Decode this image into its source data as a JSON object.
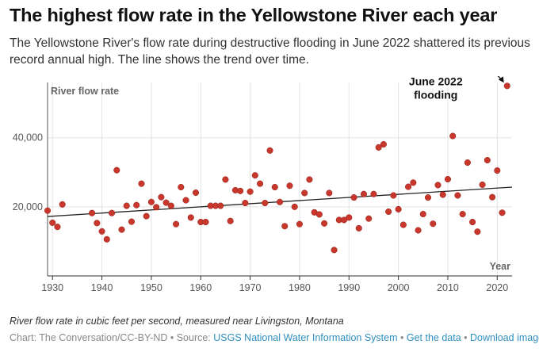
{
  "title": "The highest flow rate in the Yellowstone River each year",
  "subtitle": "The Yellowstone River's flow rate during destructive flooding in June 2022 shattered its previous record annual high. The line shows the trend over time.",
  "footnote": "River flow rate in cubic feet per second, measured near Livingston, Montana",
  "credits": {
    "prefix": "Chart: The Conversation/CC-BY-ND • Source: ",
    "source_link": "USGS National Water Information System",
    "sep1": " • ",
    "data_link": "Get the data",
    "sep2": " • ",
    "download_link": "Download image"
  },
  "colors": {
    "point": "#c9372c",
    "point_stroke": "#8e2219",
    "trend": "#222222",
    "grid": "#e3e3e3",
    "axis_label": "#666666",
    "link": "#2f8fbf"
  },
  "chart_data": {
    "type": "scatter",
    "ylabel": "River flow rate",
    "xlabel": "Year",
    "xlim": [
      1929,
      2023
    ],
    "ylim": [
      0,
      56000
    ],
    "xticks": [
      1930,
      1940,
      1950,
      1960,
      1970,
      1980,
      1990,
      2000,
      2010,
      2020
    ],
    "yticks": [
      20000,
      40000
    ],
    "ytick_labels": [
      "20,000",
      "40,000"
    ],
    "grid": true,
    "trend_line": {
      "x": [
        1929,
        2023
      ],
      "y": [
        17200,
        25700
      ]
    },
    "annotation": {
      "text_lines": [
        "June 2022",
        "flooding"
      ],
      "x": 2022,
      "y": 55000
    },
    "points": [
      {
        "x": 1929,
        "y": 18900
      },
      {
        "x": 1930,
        "y": 15400
      },
      {
        "x": 1931,
        "y": 14200
      },
      {
        "x": 1932,
        "y": 20700
      },
      {
        "x": 1938,
        "y": 18200
      },
      {
        "x": 1939,
        "y": 15300
      },
      {
        "x": 1940,
        "y": 12900
      },
      {
        "x": 1941,
        "y": 10600
      },
      {
        "x": 1942,
        "y": 18200
      },
      {
        "x": 1943,
        "y": 30600
      },
      {
        "x": 1944,
        "y": 13400
      },
      {
        "x": 1945,
        "y": 20300
      },
      {
        "x": 1946,
        "y": 15700
      },
      {
        "x": 1947,
        "y": 20500
      },
      {
        "x": 1948,
        "y": 26700
      },
      {
        "x": 1949,
        "y": 17300
      },
      {
        "x": 1950,
        "y": 21400
      },
      {
        "x": 1951,
        "y": 19900
      },
      {
        "x": 1952,
        "y": 22800
      },
      {
        "x": 1953,
        "y": 21200
      },
      {
        "x": 1954,
        "y": 20300
      },
      {
        "x": 1955,
        "y": 15000
      },
      {
        "x": 1956,
        "y": 25700
      },
      {
        "x": 1957,
        "y": 21900
      },
      {
        "x": 1958,
        "y": 16900
      },
      {
        "x": 1959,
        "y": 24100
      },
      {
        "x": 1960,
        "y": 15600
      },
      {
        "x": 1961,
        "y": 15600
      },
      {
        "x": 1962,
        "y": 20300
      },
      {
        "x": 1963,
        "y": 20300
      },
      {
        "x": 1964,
        "y": 20300
      },
      {
        "x": 1965,
        "y": 27900
      },
      {
        "x": 1966,
        "y": 15900
      },
      {
        "x": 1967,
        "y": 24800
      },
      {
        "x": 1968,
        "y": 24600
      },
      {
        "x": 1969,
        "y": 21100
      },
      {
        "x": 1970,
        "y": 24400
      },
      {
        "x": 1971,
        "y": 29100
      },
      {
        "x": 1972,
        "y": 26700
      },
      {
        "x": 1973,
        "y": 21100
      },
      {
        "x": 1974,
        "y": 36300
      },
      {
        "x": 1975,
        "y": 25700
      },
      {
        "x": 1976,
        "y": 21400
      },
      {
        "x": 1977,
        "y": 14400
      },
      {
        "x": 1978,
        "y": 26100
      },
      {
        "x": 1979,
        "y": 20000
      },
      {
        "x": 1980,
        "y": 15000
      },
      {
        "x": 1981,
        "y": 24000
      },
      {
        "x": 1982,
        "y": 27900
      },
      {
        "x": 1983,
        "y": 18400
      },
      {
        "x": 1984,
        "y": 17800
      },
      {
        "x": 1985,
        "y": 15200
      },
      {
        "x": 1986,
        "y": 24000
      },
      {
        "x": 1987,
        "y": 7500
      },
      {
        "x": 1988,
        "y": 16200
      },
      {
        "x": 1989,
        "y": 16200
      },
      {
        "x": 1990,
        "y": 16900
      },
      {
        "x": 1991,
        "y": 22700
      },
      {
        "x": 1992,
        "y": 13800
      },
      {
        "x": 1993,
        "y": 23700
      },
      {
        "x": 1994,
        "y": 16600
      },
      {
        "x": 1995,
        "y": 23700
      },
      {
        "x": 1996,
        "y": 37200
      },
      {
        "x": 1997,
        "y": 38100
      },
      {
        "x": 1998,
        "y": 18600
      },
      {
        "x": 1999,
        "y": 23300
      },
      {
        "x": 2000,
        "y": 19300
      },
      {
        "x": 2001,
        "y": 14800
      },
      {
        "x": 2002,
        "y": 25800
      },
      {
        "x": 2003,
        "y": 27000
      },
      {
        "x": 2004,
        "y": 13200
      },
      {
        "x": 2005,
        "y": 17900
      },
      {
        "x": 2006,
        "y": 22700
      },
      {
        "x": 2007,
        "y": 15100
      },
      {
        "x": 2008,
        "y": 26300
      },
      {
        "x": 2009,
        "y": 23500
      },
      {
        "x": 2010,
        "y": 28000
      },
      {
        "x": 2011,
        "y": 40500
      },
      {
        "x": 2012,
        "y": 23300
      },
      {
        "x": 2013,
        "y": 17900
      },
      {
        "x": 2014,
        "y": 32800
      },
      {
        "x": 2015,
        "y": 15600
      },
      {
        "x": 2016,
        "y": 12800
      },
      {
        "x": 2017,
        "y": 26400
      },
      {
        "x": 2018,
        "y": 33500
      },
      {
        "x": 2019,
        "y": 22800
      },
      {
        "x": 2020,
        "y": 30500
      },
      {
        "x": 2021,
        "y": 18300
      },
      {
        "x": 2022,
        "y": 55000
      }
    ]
  }
}
